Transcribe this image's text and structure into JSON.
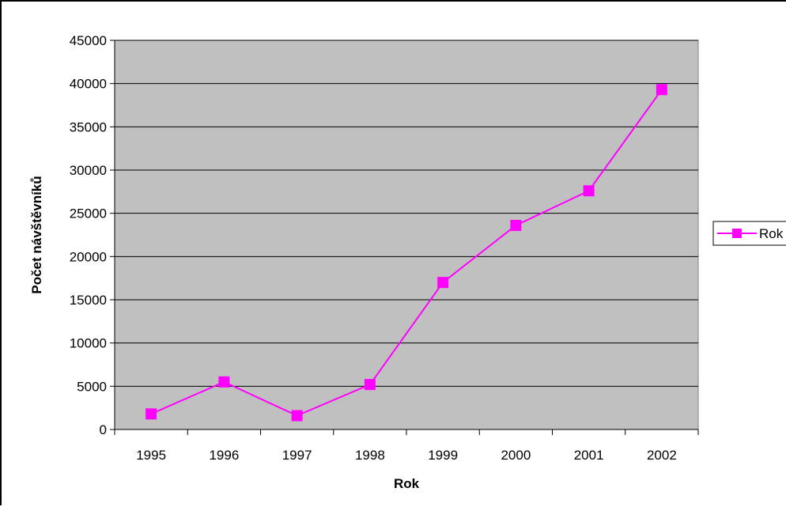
{
  "chart_data": {
    "type": "line",
    "title": "",
    "xlabel": "Rok",
    "ylabel": "Počet návštěvníků",
    "categories": [
      "1995",
      "1996",
      "1997",
      "1998",
      "1999",
      "2000",
      "2001",
      "2002"
    ],
    "series": [
      {
        "name": "Rok",
        "values": [
          1800,
          5500,
          1600,
          5200,
          17000,
          23600,
          27600,
          39300
        ],
        "color": "#ff00ff",
        "marker": "square"
      }
    ],
    "ylim": [
      0,
      45000
    ],
    "yticks": [
      "0",
      "5000",
      "10000",
      "15000",
      "20000",
      "25000",
      "30000",
      "35000",
      "40000",
      "45000"
    ],
    "grid": true,
    "plot_background": "#c0c0c0",
    "legend_position": "right"
  }
}
